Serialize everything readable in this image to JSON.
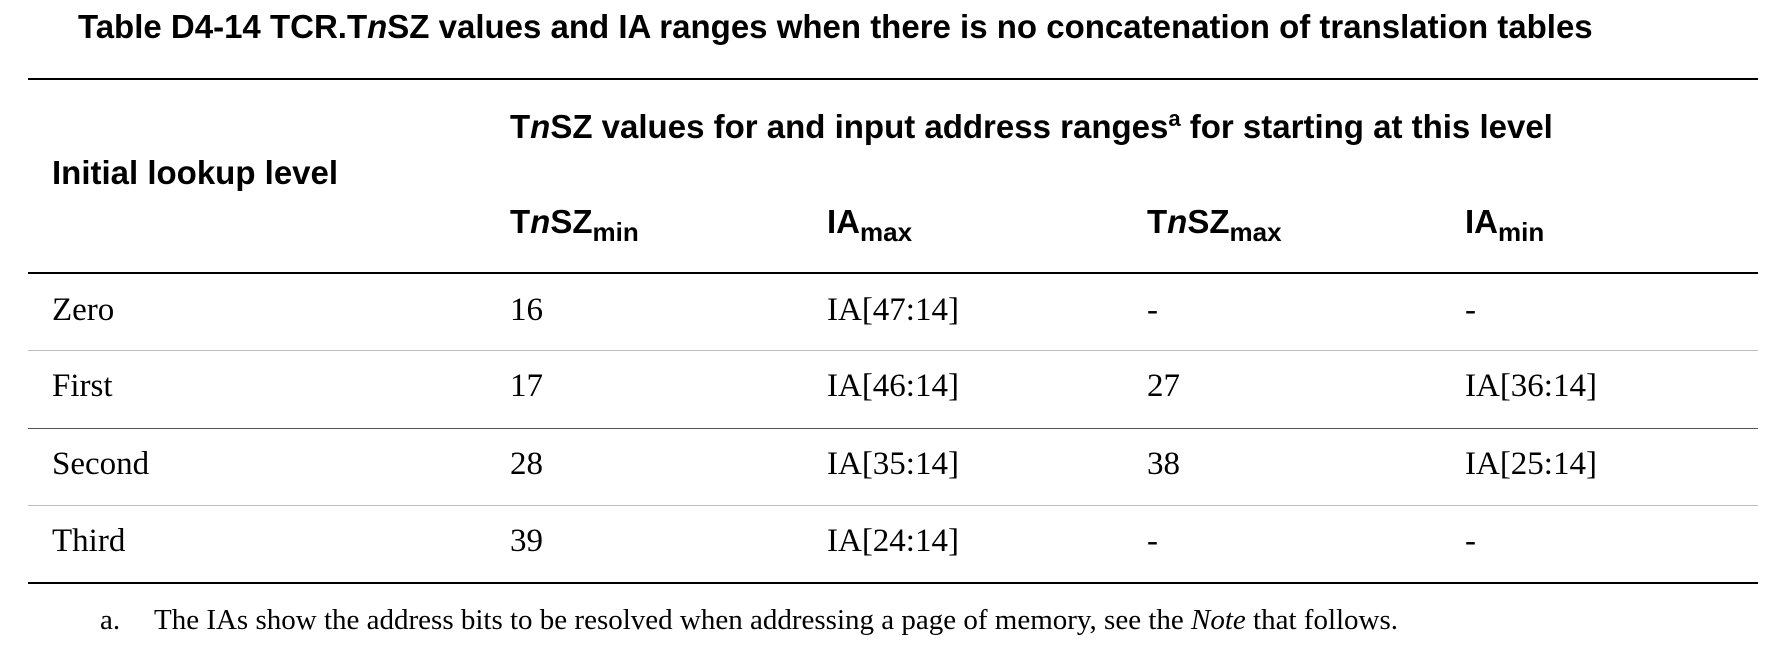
{
  "caption": {
    "prefix": "Table D4-14 TCR.T",
    "italic": "n",
    "suffix": "SZ values and IA ranges when there is no concatenation of translation tables"
  },
  "header": {
    "row_label": "Initial lookup level",
    "group": {
      "t": "T",
      "n": "n",
      "text": "SZ values for and input address ranges",
      "sup": "a",
      "after": " for starting at this level"
    },
    "columns": [
      {
        "pre": "T",
        "italic": "n",
        "main": "SZ",
        "sub": "min"
      },
      {
        "pre": "",
        "italic": "",
        "main": "IA",
        "sub": "max"
      },
      {
        "pre": "T",
        "italic": "n",
        "main": "SZ",
        "sub": "max"
      },
      {
        "pre": "",
        "italic": "",
        "main": "IA",
        "sub": "min"
      }
    ]
  },
  "rows": [
    {
      "level": "Zero",
      "tnsz_min": "16",
      "ia_max": "IA[47:14]",
      "tnsz_max": "-",
      "ia_min": "-"
    },
    {
      "level": "First",
      "tnsz_min": "17",
      "ia_max": "IA[46:14]",
      "tnsz_max": "27",
      "ia_min": "IA[36:14]"
    },
    {
      "level": "Second",
      "tnsz_min": "28",
      "ia_max": "IA[35:14]",
      "tnsz_max": "38",
      "ia_min": "IA[25:14]"
    },
    {
      "level": "Third",
      "tnsz_min": "39",
      "ia_max": "IA[24:14]",
      "tnsz_max": "-",
      "ia_min": "-"
    }
  ],
  "footnote": {
    "mark": "a.",
    "text": "The IAs show the address bits to be resolved when addressing a page of memory, see the ",
    "italic": "Note",
    "end": " that follows."
  }
}
